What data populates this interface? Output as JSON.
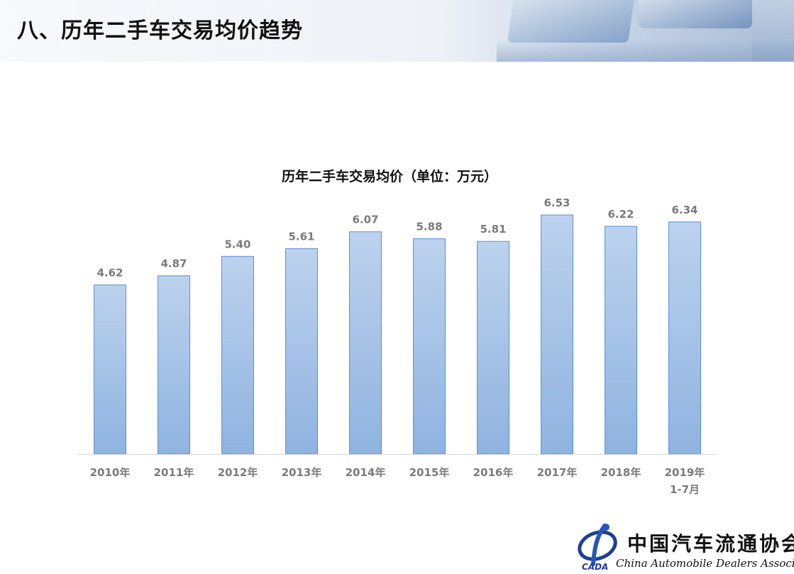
{
  "page": {
    "title": "八、历年二手车交易均价趋势"
  },
  "chart_data": {
    "type": "bar",
    "title": "历年二手车交易均价（单位：万元）",
    "categories": [
      "2010年",
      "2011年",
      "2012年",
      "2013年",
      "2014年",
      "2015年",
      "2016年",
      "2017年",
      "2018年",
      "2019年\n1-7月"
    ],
    "values": [
      4.62,
      4.87,
      5.4,
      5.61,
      6.07,
      5.88,
      5.81,
      6.53,
      6.22,
      6.34
    ],
    "value_labels": [
      "4.62",
      "4.87",
      "5.40",
      "5.61",
      "6.07",
      "5.88",
      "5.81",
      "6.53",
      "6.22",
      "6.34"
    ],
    "xlabel": "",
    "ylabel": "",
    "ylim": [
      0,
      6.53
    ],
    "grid": false,
    "colors": {
      "bar_top": "#bcd2ee",
      "bar_bottom": "#8fb3e0",
      "bar_border": "#5b8fd0"
    }
  },
  "footer": {
    "logo_cn": "中国汽车流通协会",
    "logo_en": "China Automobile Dealers Association",
    "logo_abbr": "CADA"
  }
}
